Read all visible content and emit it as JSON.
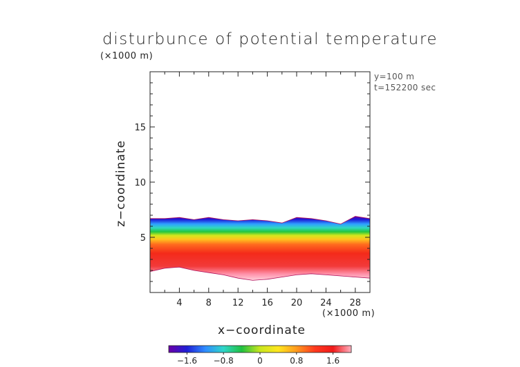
{
  "chart_data": {
    "type": "heatmap",
    "title": "disturbunce of potential temperature",
    "unit_label_top": "(×1000 m)",
    "annotations": [
      "y=100 m",
      "t=152200 sec"
    ],
    "xlabel": "x−coordinate",
    "xunit": "(×1000 m)",
    "ylabel": "z−coordinate",
    "x_range": [
      0,
      30
    ],
    "y_range": [
      0,
      20
    ],
    "x_ticks": [
      4,
      8,
      12,
      16,
      20,
      24,
      28
    ],
    "x_tick_labels": [
      "4",
      "8",
      "12",
      "16",
      "20",
      "24",
      "28"
    ],
    "y_ticks": [
      5,
      10,
      15
    ],
    "y_tick_labels": [
      "5",
      "10",
      "15"
    ],
    "colorbar": {
      "range": [
        -2,
        2
      ],
      "ticks": [
        -1.6,
        -0.8,
        0,
        0.8,
        1.6
      ],
      "tick_labels": [
        "−1.6",
        "−0.8",
        "0",
        "0.8",
        "1.6"
      ],
      "colors": [
        "#6a00a8",
        "#1f1fd6",
        "#2f8cff",
        "#2fd6c9",
        "#20c040",
        "#c8e61e",
        "#ffe61e",
        "#ff9a1e",
        "#ff3a1e",
        "#f01a1a",
        "#ffb0c0"
      ]
    },
    "field_description_levels": {
      "top_boundary_km": [
        6.7,
        6.7,
        6.8,
        6.6,
        6.8,
        6.6,
        6.5,
        6.6,
        6.5,
        6.3,
        6.8,
        6.7,
        6.5,
        6.2,
        6.9,
        6.7
      ],
      "bottom_boundary_km": [
        1.9,
        2.2,
        2.3,
        2.0,
        1.8,
        1.6,
        1.3,
        1.1,
        1.2,
        1.4,
        1.6,
        1.7,
        1.6,
        1.5,
        1.4,
        1.3
      ],
      "x_samples_km": [
        0,
        2,
        4,
        6,
        8,
        10,
        12,
        14,
        16,
        18,
        20,
        22,
        24,
        26,
        28,
        30
      ]
    }
  }
}
